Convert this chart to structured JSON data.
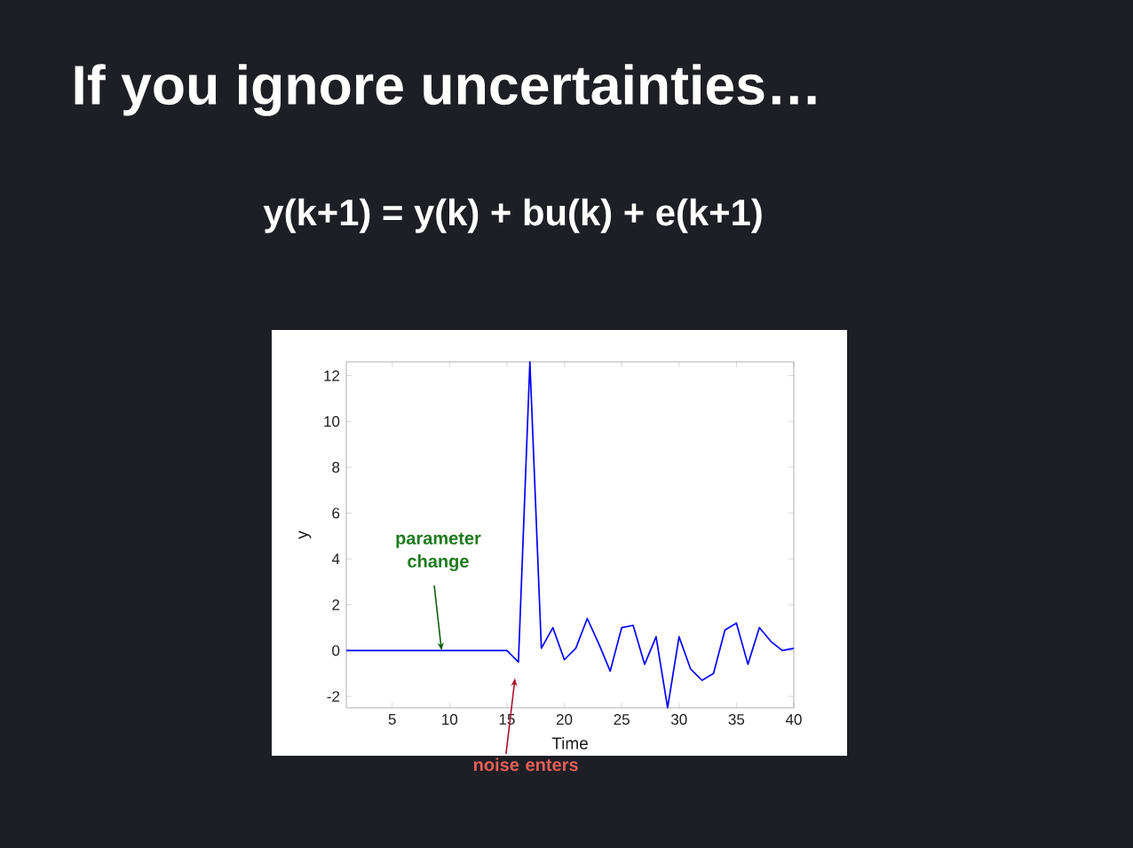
{
  "chart_data": {
    "type": "line",
    "title": "If you ignore uncertainties…",
    "subtitle": "y(k+1) = y(k) + bu(k) + e(k+1)",
    "xlabel": "Time",
    "ylabel": "y",
    "x": [
      1,
      2,
      3,
      4,
      5,
      6,
      7,
      8,
      9,
      10,
      11,
      12,
      13,
      14,
      15,
      16,
      17,
      18,
      19,
      20,
      21,
      22,
      23,
      24,
      25,
      26,
      27,
      28,
      29,
      30,
      31,
      32,
      33,
      34,
      35,
      36,
      37,
      38,
      39,
      40
    ],
    "values": [
      0,
      0,
      0,
      0,
      0,
      0,
      0,
      0,
      0,
      0,
      0,
      0,
      0,
      0,
      0,
      -0.5,
      12.6,
      0.1,
      1.0,
      -0.4,
      0.1,
      1.4,
      0.3,
      -0.9,
      1.0,
      1.1,
      -0.6,
      0.6,
      -2.5,
      0.6,
      -0.8,
      -1.3,
      -1.0,
      0.9,
      1.2,
      -0.6,
      1.0,
      0.4,
      0.0,
      0.1
    ],
    "color": "#0000ff",
    "xlim": [
      1,
      40
    ],
    "ylim": [
      -2.5,
      12.6
    ],
    "xticks": [
      5,
      10,
      15,
      20,
      25,
      30,
      35,
      40
    ],
    "yticks": [
      -2,
      0,
      2,
      4,
      6,
      8,
      10,
      12
    ],
    "annotations": [
      {
        "text": "parameter change",
        "x": 9.3,
        "y": 0
      },
      "noise enters"
    ],
    "marker": "none",
    "line_style": "solid",
    "grid": false,
    "legend": false
  }
}
